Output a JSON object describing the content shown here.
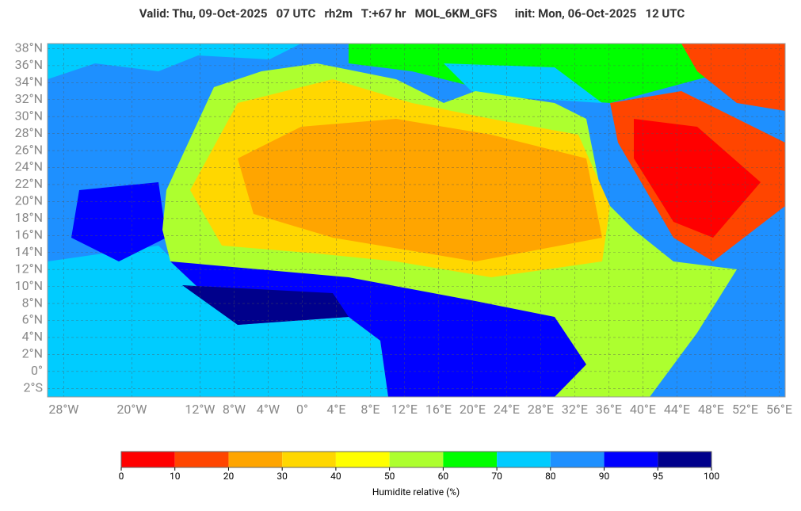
{
  "chart_data": {
    "type": "map",
    "title": "Valid: Thu, 09-Oct-2025   07 UTC   rh2m   T:+67 hr   MOL_6KM_GFS      init: Mon, 06-Oct-2025   12 UTC",
    "xlim": [
      -29.9,
      56.7
    ],
    "ylim": [
      -3,
      38.6
    ],
    "xticks": [
      {
        "value": -28,
        "label": "28°W"
      },
      {
        "value": -20,
        "label": "20°W"
      },
      {
        "value": -12,
        "label": "12°W"
      },
      {
        "value": -8,
        "label": "8°W"
      },
      {
        "value": -4,
        "label": "4°W"
      },
      {
        "value": 0,
        "label": "0°"
      },
      {
        "value": 4,
        "label": "4°E"
      },
      {
        "value": 8,
        "label": "8°E"
      },
      {
        "value": 12,
        "label": "12°E"
      },
      {
        "value": 16,
        "label": "16°E"
      },
      {
        "value": 20,
        "label": "20°E"
      },
      {
        "value": 24,
        "label": "24°E"
      },
      {
        "value": 28,
        "label": "28°E"
      },
      {
        "value": 32,
        "label": "32°E"
      },
      {
        "value": 36,
        "label": "36°E"
      },
      {
        "value": 40,
        "label": "40°E"
      },
      {
        "value": 44,
        "label": "44°E"
      },
      {
        "value": 48,
        "label": "48°E"
      },
      {
        "value": 52,
        "label": "52°E"
      },
      {
        "value": 56,
        "label": "56°E"
      }
    ],
    "yticks": [
      {
        "value": 38,
        "label": "38°N"
      },
      {
        "value": 36,
        "label": "36°N"
      },
      {
        "value": 34,
        "label": "34°N"
      },
      {
        "value": 32,
        "label": "32°N"
      },
      {
        "value": 30,
        "label": "30°N"
      },
      {
        "value": 28,
        "label": "28°N"
      },
      {
        "value": 26,
        "label": "26°N"
      },
      {
        "value": 24,
        "label": "24°N"
      },
      {
        "value": 22,
        "label": "22°N"
      },
      {
        "value": 20,
        "label": "20°N"
      },
      {
        "value": 18,
        "label": "18°N"
      },
      {
        "value": 16,
        "label": "16°N"
      },
      {
        "value": 14,
        "label": "14°N"
      },
      {
        "value": 12,
        "label": "12°N"
      },
      {
        "value": 10,
        "label": "10°N"
      },
      {
        "value": 8,
        "label": "8°N"
      },
      {
        "value": 6,
        "label": "6°N"
      },
      {
        "value": 4,
        "label": "4°N"
      },
      {
        "value": 2,
        "label": "2°N"
      },
      {
        "value": 0,
        "label": "0°"
      },
      {
        "value": -2,
        "label": "2°S"
      }
    ],
    "grid": true,
    "colorbar": {
      "label": "Humidite relative (%)",
      "ticks": [
        0,
        10,
        20,
        30,
        40,
        50,
        60,
        70,
        80,
        90,
        95,
        100
      ],
      "colors": [
        "#ff0000",
        "#ff4500",
        "#ffa500",
        "#ffd700",
        "#ffff00",
        "#adff2f",
        "#00ff00",
        "#00ccff",
        "#1e90ff",
        "#0000ff",
        "#00008b"
      ]
    }
  }
}
